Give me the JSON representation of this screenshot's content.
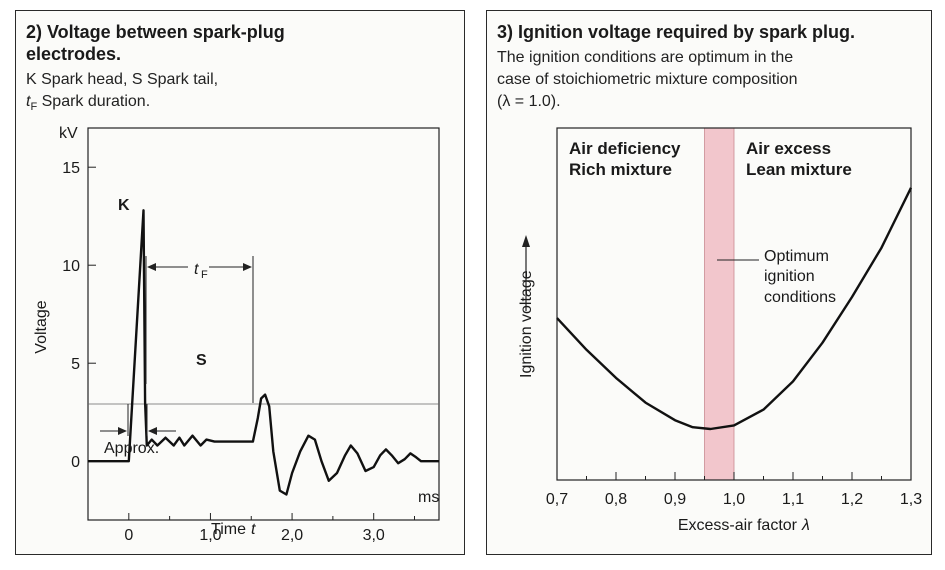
{
  "chart_data": [
    {
      "type": "line",
      "title": "2) Voltage between spark-plug electrodes.",
      "caption": {
        "line1": "K Spark head, S Spark tail,",
        "line2_symbol": "t",
        "line2_subscript": "F",
        "line2_text": " Spark duration."
      },
      "ylabel": "Voltage",
      "yunit": "kV",
      "xlabel": "Time",
      "xlabel_symbol": "t",
      "xunit": "ms",
      "xlim": [
        -0.5,
        3.8
      ],
      "ylim": [
        -3,
        17
      ],
      "x_ticks": [
        "0",
        "1,0",
        "2,0",
        "3,0"
      ],
      "x_tick_values": [
        0,
        1,
        2,
        3
      ],
      "y_ticks": [
        "0",
        "5",
        "10",
        "15"
      ],
      "y_tick_values": [
        0,
        5,
        10,
        15
      ],
      "series": [
        {
          "x": [
            -0.5,
            0.0,
            0.18,
            0.2,
            0.22,
            0.28,
            0.35,
            0.45,
            0.55,
            0.62,
            0.68,
            0.78,
            0.88,
            0.95,
            1.05,
            1.2,
            1.3,
            1.52,
            1.58,
            1.62,
            1.67,
            1.72,
            1.77,
            1.85,
            1.93,
            2.0,
            2.1,
            2.2,
            2.28,
            2.36,
            2.45,
            2.55,
            2.65,
            2.72,
            2.8,
            2.9,
            3.0,
            3.08,
            3.15,
            3.22,
            3.3,
            3.38,
            3.45,
            3.52,
            3.58,
            3.65,
            3.8
          ],
          "y": [
            0,
            0,
            12.8,
            3.0,
            0.8,
            1.1,
            0.8,
            1.2,
            0.8,
            1.2,
            0.8,
            1.3,
            0.8,
            1.1,
            1.0,
            1.0,
            1.0,
            1.0,
            2.2,
            3.2,
            3.4,
            2.8,
            0.5,
            -1.5,
            -1.7,
            -0.6,
            0.5,
            1.3,
            1.1,
            0.0,
            -1.0,
            -0.6,
            0.3,
            0.8,
            0.4,
            -0.5,
            -0.3,
            0.3,
            0.6,
            0.3,
            -0.1,
            0.1,
            0.4,
            0.2,
            0.0,
            0.0,
            0.0
          ]
        }
      ],
      "annotations": {
        "spark_head": "K",
        "spark_tail": "S",
        "duration_symbol": "t",
        "duration_subscript": "F",
        "approx": "Approx."
      }
    },
    {
      "type": "line",
      "title": "3) Ignition voltage required by spark plug.",
      "caption": {
        "line1": "The ignition conditions are optimum in the",
        "line2": "case of stoichiometric mixture composition",
        "line3": "(λ = 1.0)."
      },
      "ylabel": "Ignition voltage",
      "xlabel": "Excess-air factor",
      "xlabel_symbol": "λ",
      "xlim": [
        0.7,
        1.3
      ],
      "x_ticks": [
        "0,7",
        "0,8",
        "0,9",
        "1,0",
        "1,1",
        "1,2",
        "1,3"
      ],
      "x_tick_values": [
        0.7,
        0.8,
        0.9,
        1.0,
        1.1,
        1.2,
        1.3
      ],
      "band": {
        "from": 0.95,
        "to": 1.0,
        "color": "#f2c6cc"
      },
      "series": [
        {
          "x": [
            0.7,
            0.75,
            0.8,
            0.85,
            0.9,
            0.93,
            0.96,
            1.0,
            1.05,
            1.1,
            1.15,
            1.2,
            1.25,
            1.3
          ],
          "y": [
            0.46,
            0.37,
            0.29,
            0.22,
            0.17,
            0.15,
            0.145,
            0.155,
            0.2,
            0.28,
            0.39,
            0.52,
            0.66,
            0.83
          ]
        }
      ],
      "region_labels": {
        "rich_line1": "Air deficiency",
        "rich_line2": "Rich mixture",
        "lean_line1": "Air excess",
        "lean_line2": "Lean mixture",
        "optimum_line1": "Optimum",
        "optimum_line2": "ignition",
        "optimum_line3": "conditions"
      }
    }
  ]
}
